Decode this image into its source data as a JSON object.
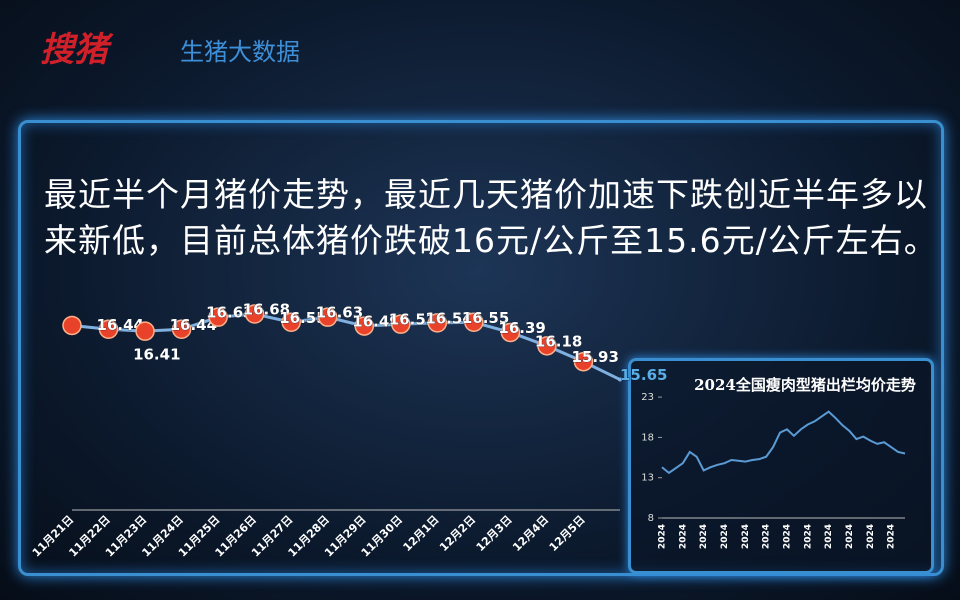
{
  "header": {
    "logo": "搜猪",
    "subtitle": "生猪大数据"
  },
  "summary": "最近半个月猪价走势，最近几天猪价加速下跌创近半年多以来新低，目前总体猪价跌破16元/公斤至15.6元/公斤左右。",
  "chart_data": [
    {
      "type": "line",
      "categories": [
        "11月21日",
        "11月22日",
        "11月23日",
        "11月24日",
        "11月25日",
        "11月26日",
        "11月27日",
        "11月28日",
        "11月29日",
        "11月30日",
        "12月1日",
        "12月2日",
        "12月3日",
        "12月4日",
        "12月5日",
        null
      ],
      "values": [
        16.5,
        16.44,
        16.41,
        16.44,
        16.63,
        16.68,
        16.55,
        16.63,
        16.49,
        16.52,
        16.54,
        16.55,
        16.39,
        16.18,
        15.93,
        15.65
      ],
      "color": "#7fb0e0",
      "ylim": [
        13.6,
        16.9
      ]
    },
    {
      "type": "line",
      "title": "2024全国瘦肉型猪出栏均价走势",
      "categories": [
        "2024",
        null,
        null,
        "2024",
        null,
        null,
        "2024",
        null,
        null,
        "2024",
        null,
        null,
        "2024",
        null,
        null,
        "2024",
        null,
        null,
        "2024",
        null,
        null,
        "2024",
        null,
        null,
        "2024",
        null,
        null,
        "2024",
        null,
        null,
        "2024",
        null,
        null,
        "2024",
        null,
        null
      ],
      "values": [
        14.3,
        13.6,
        14.2,
        14.8,
        16.2,
        15.6,
        13.9,
        14.3,
        14.6,
        14.8,
        15.2,
        15.1,
        15.0,
        15.2,
        15.3,
        15.6,
        16.8,
        18.6,
        19.0,
        18.2,
        19.0,
        19.6,
        20.0,
        20.6,
        21.2,
        20.4,
        19.5,
        18.8,
        17.8,
        18.1,
        17.6,
        17.2,
        17.4,
        16.8,
        16.2,
        16.0
      ],
      "color": "#5b9bd5",
      "ylim": [
        8,
        25
      ],
      "yticks": [
        8,
        13,
        18,
        23
      ]
    }
  ]
}
